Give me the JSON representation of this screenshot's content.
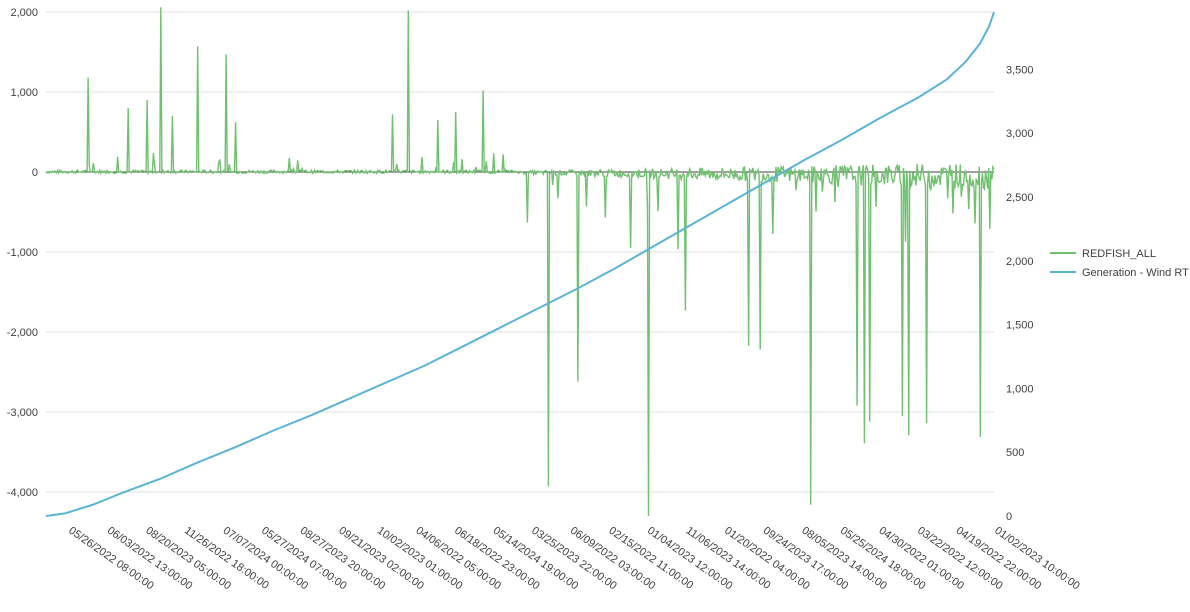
{
  "chart_data": {
    "type": "line",
    "title": "",
    "xlabel": "",
    "ylabel": "",
    "grid": true,
    "legend_position": "right",
    "y_left": {
      "min": -4300,
      "max": 2000,
      "ticks": [
        -4000,
        -3000,
        -2000,
        -1000,
        0,
        1000,
        2000
      ],
      "tick_labels": [
        "-4,000",
        "-3,000",
        "-2,000",
        "-1,000",
        "0",
        "1,000",
        "2,000"
      ]
    },
    "y_right": {
      "min": 0,
      "max": 3950,
      "ticks": [
        0,
        500,
        1000,
        1500,
        2000,
        2500,
        3000,
        3500
      ],
      "tick_labels": [
        "0",
        "500",
        "1,000",
        "1,500",
        "2,000",
        "2,500",
        "3,000",
        "3,500"
      ]
    },
    "x_tick_labels": [
      "05/26/2022 08:00:00",
      "06/03/2022 13:00:00",
      "08/20/2023 05:00:00",
      "11/26/2022 18:00:00",
      "07/07/2024 00:00:00",
      "05/27/2024 07:00:00",
      "08/27/2023 20:00:00",
      "09/21/2023 02:00:00",
      "10/02/2023 01:00:00",
      "04/06/2022 05:00:00",
      "06/18/2022 23:00:00",
      "05/14/2024 19:00:00",
      "03/25/2023 22:00:00",
      "06/09/2022 03:00:00",
      "02/15/2022 11:00:00",
      "01/04/2023 12:00:00",
      "11/06/2023 14:00:00",
      "01/20/2022 04:00:00",
      "09/24/2023 17:00:00",
      "08/05/2023 14:00:00",
      "05/25/2024 18:00:00",
      "04/30/2022 01:00:00",
      "03/22/2022 12:00:00",
      "04/19/2022 22:00:00",
      "01/02/2023 10:00:00"
    ],
    "series": [
      {
        "name": "REDFISH_ALL",
        "color": "#70c070",
        "axis": "left",
        "x": [
          0.02,
          0.05,
          0.08,
          0.1,
          0.12,
          0.14,
          0.16,
          0.18,
          0.2,
          0.22,
          0.24,
          0.26,
          0.28,
          0.3,
          0.33,
          0.36,
          0.39,
          0.42,
          0.45,
          0.48,
          0.5,
          0.52,
          0.54,
          0.56,
          0.58,
          0.6,
          0.62,
          0.64,
          0.66,
          0.68,
          0.7,
          0.72,
          0.74,
          0.76,
          0.78,
          0.8,
          0.82,
          0.84,
          0.86,
          0.88,
          0.9,
          0.92,
          0.94,
          0.96,
          0.98,
          1.0
        ],
        "spikes": [
          {
            "x": 0.044,
            "y": 1180
          },
          {
            "x": 0.087,
            "y": 800
          },
          {
            "x": 0.107,
            "y": 900
          },
          {
            "x": 0.121,
            "y": 2060
          },
          {
            "x": 0.133,
            "y": 700
          },
          {
            "x": 0.16,
            "y": 1570
          },
          {
            "x": 0.19,
            "y": 1470
          },
          {
            "x": 0.2,
            "y": 620
          },
          {
            "x": 0.365,
            "y": 720
          },
          {
            "x": 0.382,
            "y": 2020
          },
          {
            "x": 0.413,
            "y": 650
          },
          {
            "x": 0.432,
            "y": 750
          },
          {
            "x": 0.461,
            "y": 1020
          },
          {
            "x": 0.53,
            "y": -3930
          },
          {
            "x": 0.561,
            "y": -2620
          },
          {
            "x": 0.635,
            "y": -4300
          },
          {
            "x": 0.674,
            "y": -1730
          },
          {
            "x": 0.741,
            "y": -2170
          },
          {
            "x": 0.753,
            "y": -2220
          },
          {
            "x": 0.807,
            "y": -4160
          },
          {
            "x": 0.855,
            "y": -2920
          },
          {
            "x": 0.863,
            "y": -3390
          },
          {
            "x": 0.869,
            "y": -3120
          },
          {
            "x": 0.903,
            "y": -3050
          },
          {
            "x": 0.91,
            "y": -3290
          },
          {
            "x": 0.929,
            "y": -3140
          },
          {
            "x": 0.986,
            "y": -3310
          }
        ]
      },
      {
        "name": "Generation - Wind RT",
        "color": "#5ab4d6",
        "axis": "right",
        "x": [
          0.0,
          0.02,
          0.05,
          0.08,
          0.12,
          0.16,
          0.2,
          0.24,
          0.28,
          0.32,
          0.36,
          0.4,
          0.44,
          0.48,
          0.52,
          0.56,
          0.6,
          0.64,
          0.68,
          0.72,
          0.76,
          0.8,
          0.84,
          0.88,
          0.92,
          0.95,
          0.97,
          0.985,
          0.995,
          1.0
        ],
        "y": [
          0,
          20,
          90,
          180,
          290,
          420,
          540,
          670,
          790,
          920,
          1050,
          1180,
          1330,
          1480,
          1630,
          1780,
          1940,
          2110,
          2280,
          2450,
          2620,
          2790,
          2950,
          3120,
          3280,
          3420,
          3560,
          3700,
          3840,
          3950
        ]
      }
    ]
  }
}
